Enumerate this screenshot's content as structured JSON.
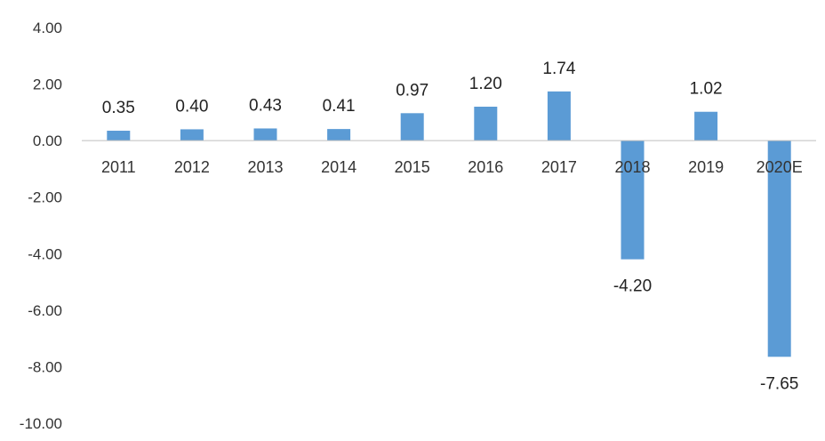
{
  "chart_data": {
    "type": "bar",
    "title": "",
    "xlabel": "",
    "ylabel": "",
    "categories": [
      "2011",
      "2012",
      "2013",
      "2014",
      "2015",
      "2016",
      "2017",
      "2018",
      "2019",
      "2020E"
    ],
    "values": [
      0.35,
      0.4,
      0.43,
      0.41,
      0.97,
      1.2,
      1.74,
      -4.2,
      1.02,
      -7.65
    ],
    "value_labels": [
      "0.35",
      "0.40",
      "0.43",
      "0.41",
      "0.97",
      "1.20",
      "1.74",
      "-4.20",
      "1.02",
      "-7.65"
    ],
    "ylim": [
      -10,
      4
    ],
    "yticks": [
      4,
      2,
      0,
      -2,
      -4,
      -6,
      -8,
      -10
    ],
    "ytick_labels": [
      "4.00",
      "2.00",
      "0.00",
      "-2.00",
      "-4.00",
      "-6.00",
      "-8.00",
      "-10.00"
    ],
    "grid": false,
    "legend": "none",
    "bar_color": "#5b9bd5",
    "axis_color": "#bfbfbf"
  }
}
